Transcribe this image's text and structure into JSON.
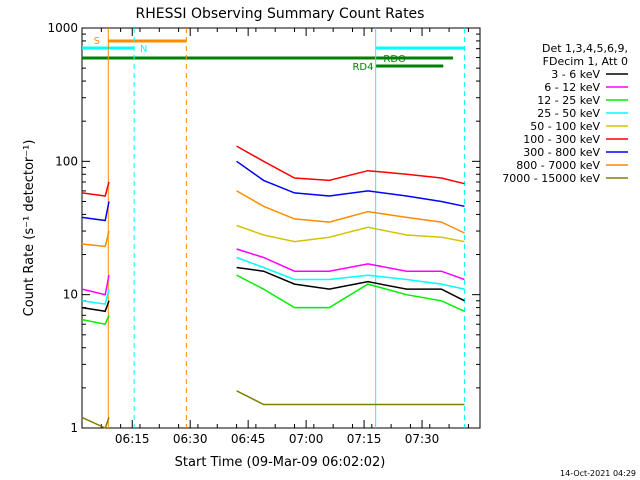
{
  "chart_data": {
    "type": "line",
    "title": "RHESSI Observing Summary Count Rates",
    "xlabel": "Start Time (09-Mar-09 06:02:02)",
    "ylabel": "Count Rate (s⁻¹ detector⁻¹)",
    "yscale": "log",
    "ylim": [
      1,
      1000
    ],
    "xlim_minutes": [
      0,
      103
    ],
    "x_ticks": [
      {
        "minute": 13,
        "label": "06:15"
      },
      {
        "minute": 28,
        "label": "06:30"
      },
      {
        "minute": 43,
        "label": "06:45"
      },
      {
        "minute": 58,
        "label": "07:00"
      },
      {
        "minute": 73,
        "label": "07:15"
      },
      {
        "minute": 88,
        "label": "07:30"
      }
    ],
    "y_ticks": [
      {
        "value": 1,
        "label": "1"
      },
      {
        "value": 10,
        "label": "10"
      },
      {
        "value": 100,
        "label": "100"
      },
      {
        "value": 1000,
        "label": "1000"
      }
    ],
    "legend_header": [
      "Det 1,3,4,5,6,9,",
      "FDecim 1, Att 0"
    ],
    "legend_placement": "right",
    "grid": false,
    "series": [
      {
        "name": "3 - 6 keV",
        "color": "#000000",
        "points": [
          [
            0,
            8
          ],
          [
            6,
            7.5
          ],
          [
            7,
            9
          ],
          [
            40,
            16
          ],
          [
            47,
            15
          ],
          [
            55,
            12
          ],
          [
            64,
            11
          ],
          [
            74,
            12.5
          ],
          [
            84,
            11
          ],
          [
            93,
            11
          ],
          [
            99,
            9
          ]
        ]
      },
      {
        "name": "6 - 12 keV",
        "color": "#ff00ff",
        "points": [
          [
            0,
            11
          ],
          [
            6,
            10
          ],
          [
            7,
            14
          ],
          [
            40,
            22
          ],
          [
            47,
            19
          ],
          [
            55,
            15
          ],
          [
            64,
            15
          ],
          [
            74,
            17
          ],
          [
            84,
            15
          ],
          [
            93,
            15
          ],
          [
            99,
            13
          ]
        ]
      },
      {
        "name": "12 - 25 keV",
        "color": "#00ee00",
        "points": [
          [
            0,
            6.5
          ],
          [
            6,
            6
          ],
          [
            7,
            7
          ],
          [
            40,
            14
          ],
          [
            47,
            11
          ],
          [
            55,
            8
          ],
          [
            64,
            8
          ],
          [
            74,
            12
          ],
          [
            84,
            10
          ],
          [
            93,
            9
          ],
          [
            99,
            7.5
          ]
        ]
      },
      {
        "name": "25 - 50 keV",
        "color": "#00ffff",
        "points": [
          [
            0,
            9
          ],
          [
            6,
            8.5
          ],
          [
            7,
            11
          ],
          [
            40,
            19
          ],
          [
            47,
            16
          ],
          [
            55,
            13
          ],
          [
            64,
            13
          ],
          [
            74,
            14
          ],
          [
            84,
            13
          ],
          [
            93,
            12
          ],
          [
            99,
            11
          ]
        ]
      },
      {
        "name": "50 - 100 keV",
        "color": "#d4c400",
        "points": [
          [
            40,
            33
          ],
          [
            47,
            28
          ],
          [
            55,
            25
          ],
          [
            64,
            27
          ],
          [
            74,
            32
          ],
          [
            84,
            28
          ],
          [
            93,
            27
          ],
          [
            99,
            25
          ]
        ]
      },
      {
        "name": "100 - 300 keV",
        "color": "#ff0000",
        "points": [
          [
            0,
            58
          ],
          [
            6,
            55
          ],
          [
            7,
            70
          ],
          [
            40,
            130
          ],
          [
            47,
            100
          ],
          [
            55,
            75
          ],
          [
            64,
            72
          ],
          [
            74,
            85
          ],
          [
            84,
            80
          ],
          [
            93,
            75
          ],
          [
            99,
            68
          ]
        ]
      },
      {
        "name": "300 - 800 keV",
        "color": "#0000ff",
        "points": [
          [
            0,
            38
          ],
          [
            6,
            36
          ],
          [
            7,
            50
          ],
          [
            40,
            100
          ],
          [
            47,
            72
          ],
          [
            55,
            58
          ],
          [
            64,
            55
          ],
          [
            74,
            60
          ],
          [
            84,
            55
          ],
          [
            93,
            50
          ],
          [
            99,
            46
          ]
        ]
      },
      {
        "name": "800 - 7000 keV",
        "color": "#ff8c00",
        "points": [
          [
            0,
            24
          ],
          [
            6,
            23
          ],
          [
            7,
            30
          ],
          [
            40,
            60
          ],
          [
            47,
            46
          ],
          [
            55,
            37
          ],
          [
            64,
            35
          ],
          [
            74,
            42
          ],
          [
            84,
            38
          ],
          [
            93,
            35
          ],
          [
            99,
            29
          ]
        ]
      },
      {
        "name": "7000 - 15000 keV",
        "color": "#808000",
        "points": [
          [
            0,
            1.2
          ],
          [
            6,
            1
          ],
          [
            7,
            1.2
          ],
          [
            40,
            1.9
          ],
          [
            47,
            1.5
          ],
          [
            55,
            1.5
          ],
          [
            64,
            1.5
          ],
          [
            74,
            1.5
          ],
          [
            84,
            1.5
          ],
          [
            93,
            1.5
          ],
          [
            99,
            1.5
          ]
        ]
      }
    ],
    "annotations": [
      {
        "text": "S",
        "color": "#ff8c00"
      },
      {
        "text": "N",
        "color": "#00ffff"
      },
      {
        "text": "RD4",
        "color": "#007f00"
      },
      {
        "text": "RDO",
        "color": "#007f00"
      }
    ],
    "footer_timestamp": "14-Oct-2021 04:29"
  }
}
